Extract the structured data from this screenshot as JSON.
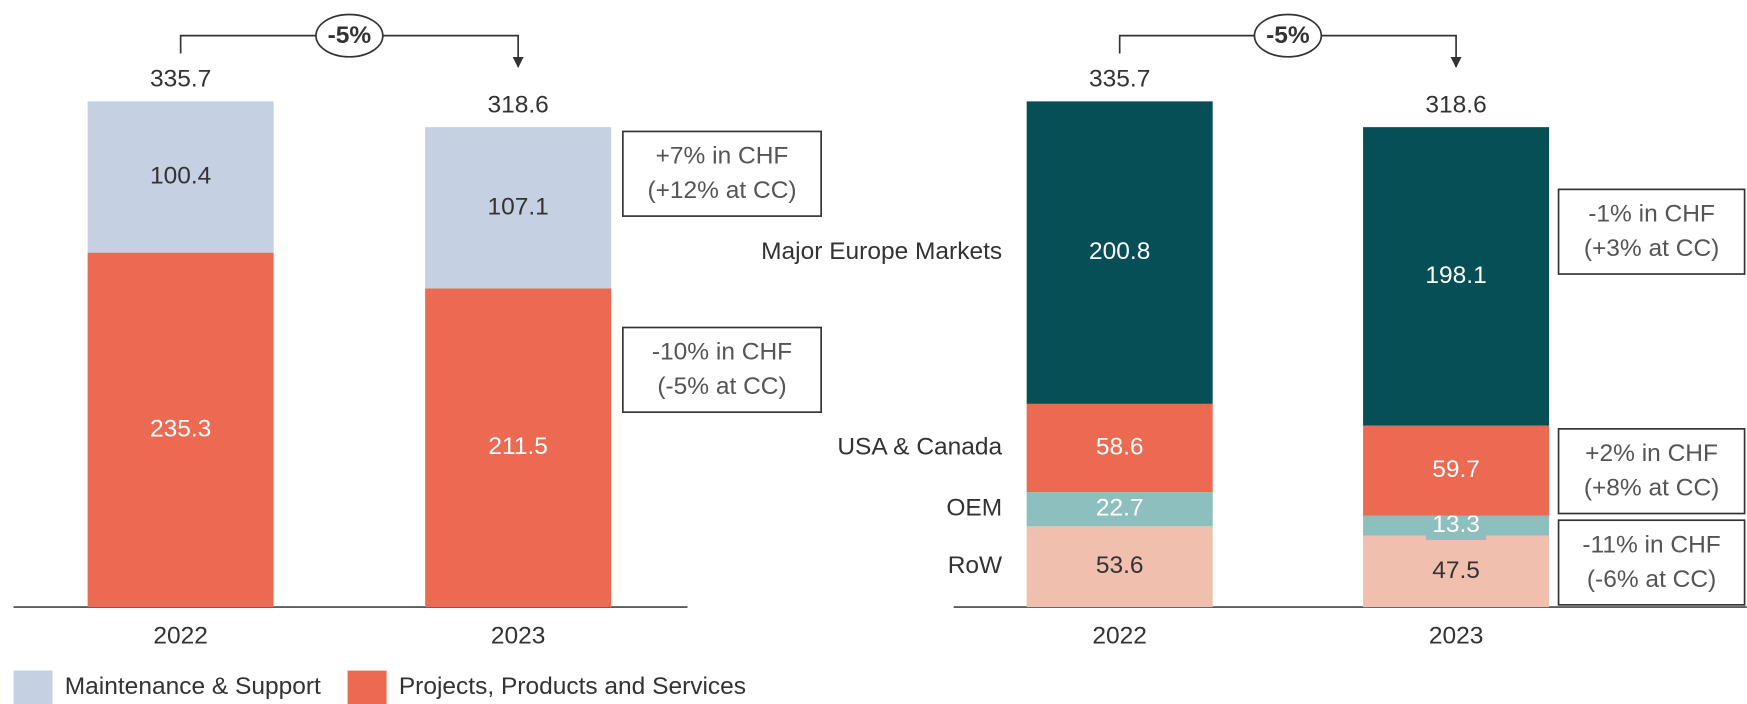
{
  "chart_data": [
    {
      "type": "bar",
      "stacked": true,
      "legend": true,
      "categories": [
        "2022",
        "2023"
      ],
      "totals": [
        335.7,
        318.6
      ],
      "change": "-5%",
      "series": [
        {
          "name": "Maintenance & Support",
          "color": "#c5d0e2",
          "values": [
            100.4,
            107.1
          ],
          "annotation": [
            "+7% in CHF",
            "(+12% at CC)"
          ]
        },
        {
          "name": "Projects, Products and Services",
          "color": "#ec6a52",
          "values": [
            235.3,
            211.5
          ],
          "annotation": [
            "-10% in CHF",
            "(-5% at CC)"
          ]
        }
      ]
    },
    {
      "type": "bar",
      "stacked": true,
      "legend": false,
      "categories": [
        "2022",
        "2023"
      ],
      "totals": [
        335.7,
        318.6
      ],
      "change": "-5%",
      "series": [
        {
          "name": "Major Europe Markets",
          "color": "#074f57",
          "values": [
            200.8,
            198.1
          ],
          "annotation": [
            "-1% in CHF",
            "(+3% at CC)"
          ]
        },
        {
          "name": "USA & Canada",
          "color": "#ec6a52",
          "values": [
            58.6,
            59.7
          ],
          "annotation": [
            "+2% in CHF",
            "(+8% at CC)"
          ]
        },
        {
          "name": "OEM",
          "color": "#8dbfbe",
          "values": [
            22.7,
            13.3
          ]
        },
        {
          "name": "RoW",
          "color": "#f0bfae",
          "values": [
            53.6,
            47.5
          ],
          "annotation": [
            "-11% in CHF",
            "(-6% at CC)"
          ]
        }
      ]
    }
  ]
}
